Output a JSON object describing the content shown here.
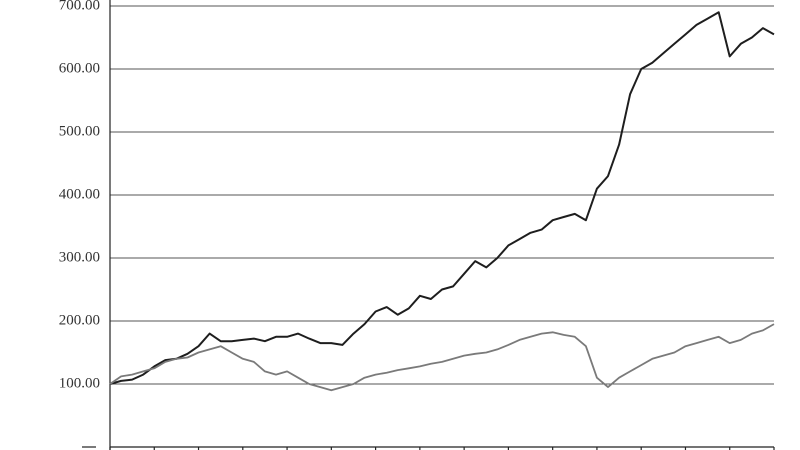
{
  "chart_data": {
    "type": "line",
    "categories": [
      null,
      null,
      null,
      null,
      null,
      null,
      null,
      null,
      null,
      null,
      null,
      null,
      null,
      null,
      null,
      null,
      null,
      null,
      null,
      null,
      null,
      null,
      null,
      null,
      null,
      null,
      null,
      null,
      null,
      null,
      null,
      null,
      null,
      null,
      null,
      null,
      null,
      null,
      null,
      null,
      null,
      null,
      null,
      null,
      null,
      null,
      null,
      null,
      null,
      null,
      null,
      null,
      null,
      null,
      null,
      null,
      null,
      null,
      null,
      null,
      null
    ],
    "series": [
      {
        "color": "#1e1e1e",
        "values": [
          100,
          105,
          107,
          115,
          128,
          138,
          140,
          148,
          160,
          180,
          168,
          168,
          170,
          172,
          168,
          175,
          175,
          180,
          172,
          165,
          165,
          162,
          180,
          195,
          215,
          222,
          210,
          220,
          240,
          235,
          250,
          255,
          275,
          295,
          285,
          300,
          320,
          330,
          340,
          345,
          360,
          365,
          370,
          360,
          410,
          430,
          480,
          560,
          600,
          610,
          625,
          640,
          655,
          670,
          680,
          690,
          620,
          640,
          650,
          665,
          655
        ]
      },
      {
        "color": "#7a7a7a",
        "values": [
          100,
          112,
          115,
          120,
          125,
          135,
          140,
          142,
          150,
          155,
          160,
          150,
          140,
          135,
          120,
          115,
          120,
          110,
          100,
          95,
          90,
          95,
          100,
          110,
          115,
          118,
          122,
          125,
          128,
          132,
          135,
          140,
          145,
          148,
          150,
          155,
          162,
          170,
          175,
          180,
          182,
          178,
          175,
          160,
          110,
          95,
          110,
          120,
          130,
          140,
          145,
          150,
          160,
          165,
          170,
          175,
          165,
          170,
          180,
          185,
          195
        ]
      }
    ],
    "ylim": [
      0,
      700
    ],
    "yticks": [
      {
        "value": 100,
        "label": "100.00"
      },
      {
        "value": 200,
        "label": "200.00"
      },
      {
        "value": 300,
        "label": "300.00"
      },
      {
        "value": 400,
        "label": "400.00"
      },
      {
        "value": 500,
        "label": "500.00"
      },
      {
        "value": 600,
        "label": "600.00"
      },
      {
        "value": 700,
        "label": "700.00"
      }
    ],
    "grid": true
  }
}
